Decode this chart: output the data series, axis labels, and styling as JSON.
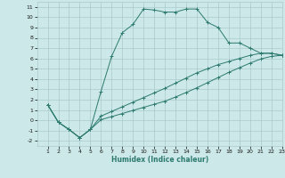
{
  "xlabel": "Humidex (Indice chaleur)",
  "background_color": "#cce8e8",
  "grid_color": "#aacccc",
  "line_color": "#2d7a6e",
  "xlim": [
    0,
    23
  ],
  "ylim": [
    -2.5,
    11.5
  ],
  "xticks": [
    1,
    2,
    3,
    4,
    5,
    6,
    7,
    8,
    9,
    10,
    11,
    12,
    13,
    14,
    15,
    16,
    17,
    18,
    19,
    20,
    21,
    22,
    23
  ],
  "yticks": [
    -2,
    -1,
    0,
    1,
    2,
    3,
    4,
    5,
    6,
    7,
    8,
    9,
    10,
    11
  ],
  "line1_x": [
    1,
    2,
    3,
    4,
    5,
    6,
    7,
    8,
    9,
    10,
    11,
    12,
    13,
    14,
    15,
    16,
    17,
    18,
    19,
    20,
    21,
    22,
    23
  ],
  "line1_y": [
    1.5,
    -0.2,
    -0.9,
    -1.7,
    -0.9,
    2.8,
    6.2,
    8.5,
    9.3,
    10.8,
    10.7,
    10.5,
    10.5,
    10.8,
    10.8,
    9.5,
    9.0,
    7.5,
    7.5,
    7.0,
    6.5,
    6.5,
    6.3
  ],
  "line2_x": [
    1,
    2,
    3,
    4,
    5,
    6,
    7,
    8,
    9,
    10,
    11,
    12,
    13,
    14,
    15,
    16,
    17,
    18,
    19,
    20,
    21,
    22,
    23
  ],
  "line2_y": [
    1.5,
    -0.2,
    -0.9,
    -1.7,
    -0.9,
    0.4,
    0.85,
    1.3,
    1.75,
    2.2,
    2.65,
    3.1,
    3.6,
    4.1,
    4.6,
    5.0,
    5.4,
    5.7,
    6.0,
    6.3,
    6.5,
    6.5,
    6.3
  ],
  "line3_x": [
    1,
    2,
    3,
    4,
    5,
    6,
    7,
    8,
    9,
    10,
    11,
    12,
    13,
    14,
    15,
    16,
    17,
    18,
    19,
    20,
    21,
    22,
    23
  ],
  "line3_y": [
    1.5,
    -0.2,
    -0.9,
    -1.7,
    -0.9,
    0.05,
    0.35,
    0.65,
    0.95,
    1.25,
    1.55,
    1.85,
    2.25,
    2.7,
    3.15,
    3.65,
    4.15,
    4.65,
    5.1,
    5.55,
    5.95,
    6.2,
    6.3
  ]
}
